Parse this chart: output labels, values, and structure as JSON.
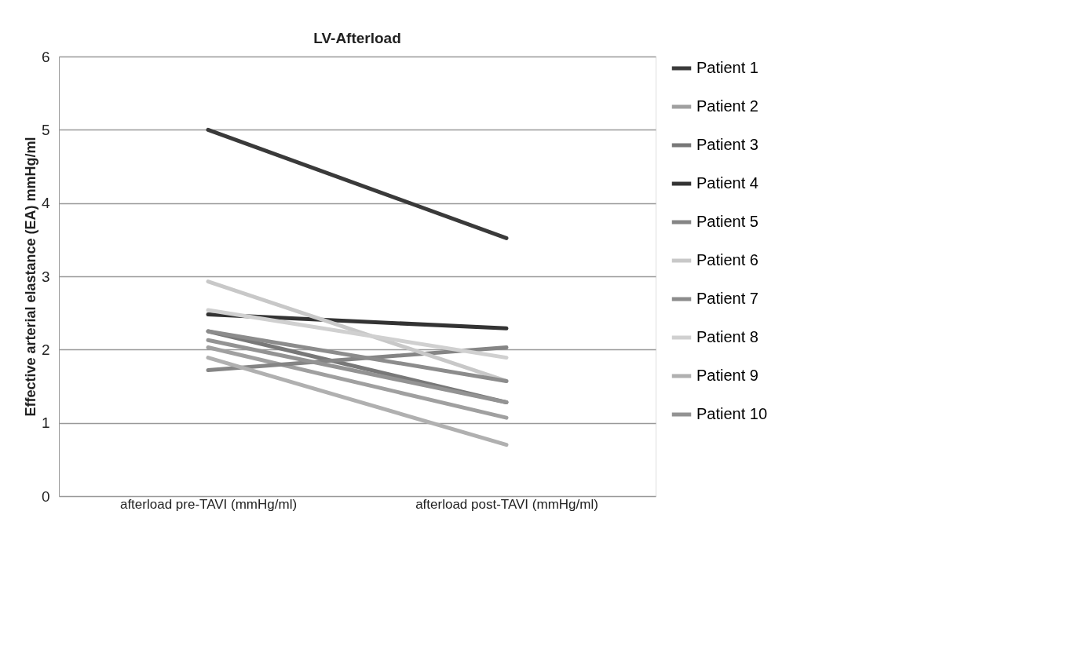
{
  "chart_data": {
    "type": "line",
    "title": "LV-Afterload",
    "ylabel": "Effective arterial elastance (EA) mmHg/ml",
    "categories": [
      "afterload pre-TAVI (mmHg/ml)",
      "afterload post-TAVI (mmHg/ml)"
    ],
    "series": [
      {
        "name": "Patient 1",
        "color": "#3a3a3a",
        "values": [
          5.0,
          3.52
        ]
      },
      {
        "name": "Patient 2",
        "color": "#a0a0a0",
        "values": [
          2.03,
          1.07
        ]
      },
      {
        "name": "Patient 3",
        "color": "#787878",
        "values": [
          2.25,
          1.28
        ]
      },
      {
        "name": "Patient 4",
        "color": "#333333",
        "values": [
          2.48,
          2.29
        ]
      },
      {
        "name": "Patient 5",
        "color": "#858585",
        "values": [
          1.72,
          2.03
        ]
      },
      {
        "name": "Patient 6",
        "color": "#c8c8c8",
        "values": [
          2.93,
          1.57
        ]
      },
      {
        "name": "Patient 7",
        "color": "#8c8c8c",
        "values": [
          2.25,
          1.57
        ]
      },
      {
        "name": "Patient 8",
        "color": "#d0d0d0",
        "values": [
          2.54,
          1.89
        ]
      },
      {
        "name": "Patient 9",
        "color": "#b0b0b0",
        "values": [
          1.89,
          0.7
        ]
      },
      {
        "name": "Patient 10",
        "color": "#939393",
        "values": [
          2.13,
          1.28
        ]
      }
    ],
    "ylim": [
      0,
      6
    ],
    "yticks": [
      0,
      1,
      2,
      3,
      4,
      5,
      6
    ],
    "grid": "y",
    "legend": "right",
    "marker": "none",
    "line_style": "solid"
  }
}
